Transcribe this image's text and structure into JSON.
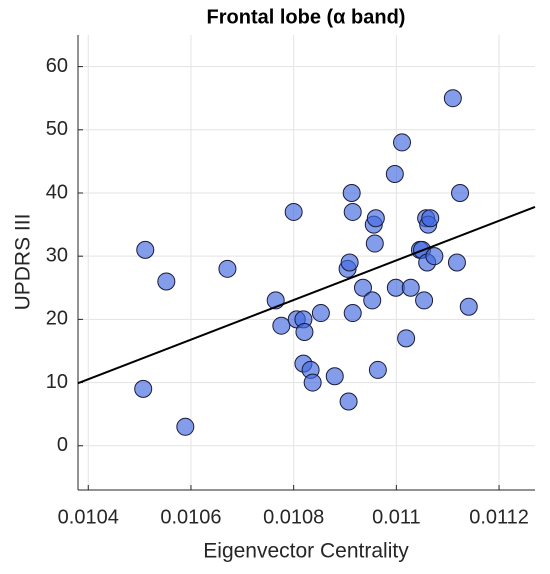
{
  "chart_data": {
    "type": "scatter",
    "title": "Frontal lobe (α band)",
    "x_label": "Eigenvector Centrality",
    "y_label": "UPDRS III",
    "xlim": [
      0.01038,
      0.01127
    ],
    "ylim": [
      -7,
      65
    ],
    "xticks": [
      0.0104,
      0.0106,
      0.0108,
      0.011,
      0.0112
    ],
    "yticks": [
      0,
      10,
      20,
      30,
      40,
      50,
      60
    ],
    "grid": true,
    "color": "#4169e1",
    "x": [
      0.010511,
      0.010507,
      0.010552,
      0.010589,
      0.010671,
      0.010765,
      0.010776,
      0.0108,
      0.010806,
      0.010819,
      0.010821,
      0.010819,
      0.010833,
      0.010837,
      0.010853,
      0.01088,
      0.010905,
      0.010909,
      0.010913,
      0.010915,
      0.010915,
      0.010907,
      0.010935,
      0.010953,
      0.010956,
      0.01096,
      0.010958,
      0.010964,
      0.010997,
      0.010999,
      0.011011,
      0.011019,
      0.011028,
      0.011046,
      0.01105,
      0.011054,
      0.011058,
      0.01106,
      0.011062,
      0.011066,
      0.011074,
      0.01111,
      0.011118,
      0.011124,
      0.011141
    ],
    "y": [
      31,
      9,
      26,
      3,
      28,
      23,
      19,
      37,
      20,
      20,
      18,
      13,
      12,
      10,
      21,
      11,
      28,
      29,
      40,
      37,
      21,
      7,
      25,
      23,
      35,
      36,
      32,
      12,
      43,
      25,
      48,
      17,
      25,
      31,
      31,
      23,
      36,
      29,
      35,
      36,
      30,
      55,
      29,
      40,
      22
    ],
    "fit_line": {
      "x": [
        0.01038,
        0.01127
      ],
      "y": [
        9.9,
        37.8
      ],
      "color": "#000000"
    }
  }
}
